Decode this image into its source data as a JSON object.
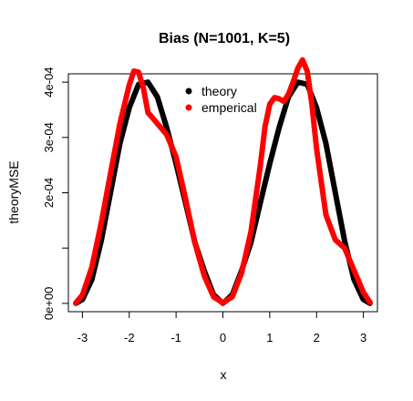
{
  "chart_data": {
    "type": "line",
    "title": "Bias (N=1001, K=5)",
    "xlabel": "x",
    "ylabel": "theoryMSE",
    "xlim": [
      -3.3,
      3.3
    ],
    "ylim": [
      -1.5e-05,
      0.000415
    ],
    "x_ticks": [
      -3,
      -2,
      -1,
      0,
      1,
      2,
      3
    ],
    "x_tick_labels": [
      "-3",
      "-2",
      "-1",
      "0",
      "1",
      "2",
      "3"
    ],
    "y_ticks": [
      0,
      0.0001,
      0.0002,
      0.0003,
      0.0004
    ],
    "y_tick_labels": [
      "0e+00",
      "",
      "2e-04",
      "3e-04",
      "4e-04"
    ],
    "grid": false,
    "legend_position": "top-center",
    "series": [
      {
        "name": "theory",
        "color": "#000000",
        "x": [
          -3.14,
          -3.0,
          -2.8,
          -2.6,
          -2.4,
          -2.2,
          -2.0,
          -1.8,
          -1.6,
          -1.4,
          -1.2,
          -1.0,
          -0.8,
          -0.6,
          -0.4,
          -0.2,
          0.0,
          0.2,
          0.4,
          0.6,
          0.8,
          1.0,
          1.2,
          1.4,
          1.6,
          1.8,
          2.0,
          2.2,
          2.4,
          2.6,
          2.8,
          3.0,
          3.14
        ],
        "y": [
          2e-07,
          6.9e-06,
          4.28e-05,
          0.0001128,
          0.0002002,
          0.0002891,
          0.0003537,
          0.000396,
          0.0003998,
          0.0003731,
          0.0003174,
          0.0002529,
          0.0001823,
          0.0001106,
          5.91e-05,
          1.56e-05,
          1e-07,
          1.56e-05,
          5.91e-05,
          0.0001106,
          0.0001823,
          0.0002529,
          0.0003174,
          0.0003731,
          0.0003998,
          0.000396,
          0.0003537,
          0.0002891,
          0.0002002,
          0.0001128,
          4.28e-05,
          6.9e-06,
          2e-07
        ]
      },
      {
        "name": "emperical",
        "color": "#ff0000",
        "x": [
          -3.14,
          -3.0,
          -2.8,
          -2.6,
          -2.4,
          -2.2,
          -2.0,
          -1.9,
          -1.8,
          -1.7,
          -1.6,
          -1.4,
          -1.2,
          -1.0,
          -0.8,
          -0.6,
          -0.4,
          -0.2,
          0.0,
          0.2,
          0.4,
          0.6,
          0.8,
          0.9,
          1.0,
          1.1,
          1.2,
          1.3,
          1.4,
          1.5,
          1.6,
          1.7,
          1.8,
          1.9,
          2.0,
          2.2,
          2.4,
          2.6,
          2.8,
          3.0,
          3.14
        ],
        "y": [
          1e-06,
          1.5e-05,
          6.5e-05,
          0.000145,
          0.000235,
          0.000325,
          0.000395,
          0.00042,
          0.000418,
          0.00039,
          0.000345,
          0.000325,
          0.000305,
          0.000265,
          0.00019,
          0.00011,
          5e-05,
          1.2e-05,
          1e-06,
          1.2e-05,
          5.5e-05,
          0.00013,
          0.00025,
          0.00032,
          0.00036,
          0.000372,
          0.00037,
          0.000365,
          0.000378,
          0.0004,
          0.000425,
          0.00044,
          0.00042,
          0.00036,
          0.00028,
          0.00016,
          0.000115,
          0.0001,
          6e-05,
          2e-05,
          2e-06
        ]
      }
    ]
  }
}
